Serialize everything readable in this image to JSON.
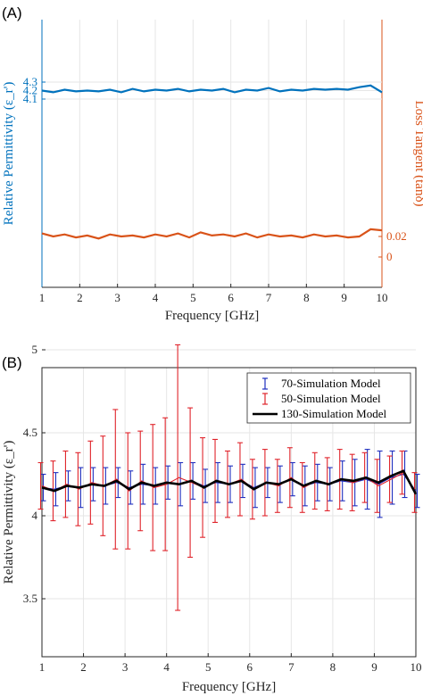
{
  "panels": [
    {
      "label": "(A)"
    },
    {
      "label": "(B)"
    }
  ],
  "chart_data": [
    {
      "type": "line",
      "panel": "(A)",
      "xlabel": "Frequency [GHz]",
      "ylabel_left": "Relative Permittivity (ε_r')",
      "ylabel_right": "Loss Tangent (tanδ)",
      "xlim": [
        1,
        10
      ],
      "xticks": [
        "1",
        "2",
        "3",
        "4",
        "5",
        "6",
        "7",
        "8",
        "9",
        "10"
      ],
      "left_ticks": [
        "4.3",
        "4.2",
        "4.1"
      ],
      "right_ticks": [
        "0.02",
        "0"
      ],
      "colors": {
        "permittivity": "#0072BD",
        "loss_tangent": "#D95319"
      },
      "grid": true,
      "x": [
        1.0,
        1.3,
        1.6,
        1.9,
        2.2,
        2.5,
        2.8,
        3.1,
        3.4,
        3.7,
        4.0,
        4.3,
        4.6,
        4.9,
        5.2,
        5.5,
        5.8,
        6.1,
        6.4,
        6.7,
        7.0,
        7.3,
        7.6,
        7.9,
        8.2,
        8.5,
        8.8,
        9.1,
        9.4,
        9.7,
        10.0
      ],
      "series": [
        {
          "values": [
            4.2,
            4.18,
            4.21,
            4.19,
            4.2,
            4.19,
            4.21,
            4.18,
            4.22,
            4.19,
            4.21,
            4.2,
            4.22,
            4.19,
            4.21,
            4.2,
            4.22,
            4.18,
            4.21,
            4.2,
            4.23,
            4.19,
            4.21,
            4.2,
            4.22,
            4.21,
            4.22,
            4.21,
            4.24,
            4.26,
            4.18
          ]
        },
        {
          "values": [
            0.023,
            0.02,
            0.022,
            0.019,
            0.021,
            0.018,
            0.022,
            0.02,
            0.021,
            0.019,
            0.022,
            0.02,
            0.023,
            0.019,
            0.024,
            0.021,
            0.022,
            0.02,
            0.023,
            0.019,
            0.022,
            0.02,
            0.021,
            0.019,
            0.022,
            0.02,
            0.021,
            0.019,
            0.02,
            0.027,
            0.026
          ]
        }
      ]
    },
    {
      "type": "line",
      "panel": "(B)",
      "xlabel": "Frequency [GHz]",
      "ylabel": "Relative Permittivity (ε_r')",
      "xlim": [
        1,
        10
      ],
      "ylim": [
        3.2,
        5.3
      ],
      "xticks": [
        "1",
        "2",
        "3",
        "4",
        "5",
        "6",
        "7",
        "8",
        "9",
        "10"
      ],
      "yticks": [
        "3.5",
        "4",
        "4.5",
        "5"
      ],
      "grid": true,
      "legend_position": "top-right",
      "legend": [
        "70-Simulation Model",
        "50-Simulation Model",
        "130-Simulation Model"
      ],
      "colors": {
        "model70": "#1f2fbf",
        "model50": "#e0242b",
        "model130": "#000000"
      },
      "x": [
        1.0,
        1.3,
        1.6,
        1.9,
        2.2,
        2.5,
        2.8,
        3.1,
        3.4,
        3.7,
        4.0,
        4.3,
        4.6,
        4.9,
        5.2,
        5.5,
        5.8,
        6.1,
        6.4,
        6.7,
        7.0,
        7.3,
        7.6,
        7.9,
        8.2,
        8.5,
        8.8,
        9.1,
        9.4,
        9.7,
        10.0
      ],
      "series": [
        {
          "name": "70-Simulation Model",
          "values": [
            4.17,
            4.16,
            4.18,
            4.17,
            4.19,
            4.18,
            4.2,
            4.17,
            4.19,
            4.18,
            4.2,
            4.19,
            4.21,
            4.18,
            4.2,
            4.19,
            4.21,
            4.17,
            4.2,
            4.19,
            4.22,
            4.18,
            4.2,
            4.19,
            4.21,
            4.2,
            4.22,
            4.19,
            4.23,
            4.25,
            4.15
          ],
          "errors": [
            0.08,
            0.1,
            0.09,
            0.12,
            0.1,
            0.11,
            0.09,
            0.1,
            0.12,
            0.11,
            0.1,
            0.13,
            0.11,
            0.1,
            0.12,
            0.11,
            0.1,
            0.12,
            0.09,
            0.11,
            0.1,
            0.12,
            0.11,
            0.1,
            0.12,
            0.14,
            0.18,
            0.2,
            0.16,
            0.14,
            0.1
          ]
        },
        {
          "name": "50-Simulation Model",
          "values": [
            4.18,
            4.15,
            4.19,
            4.16,
            4.2,
            4.18,
            4.22,
            4.15,
            4.21,
            4.17,
            4.19,
            4.23,
            4.2,
            4.17,
            4.21,
            4.19,
            4.22,
            4.16,
            4.2,
            4.18,
            4.23,
            4.17,
            4.21,
            4.19,
            4.22,
            4.2,
            4.23,
            4.18,
            4.22,
            4.26,
            4.14
          ],
          "errors": [
            0.14,
            0.18,
            0.2,
            0.22,
            0.25,
            0.3,
            0.42,
            0.35,
            0.3,
            0.38,
            0.4,
            0.8,
            0.45,
            0.3,
            0.25,
            0.2,
            0.22,
            0.18,
            0.2,
            0.16,
            0.18,
            0.15,
            0.17,
            0.16,
            0.18,
            0.17,
            0.15,
            0.16,
            0.14,
            0.13,
            0.12
          ]
        },
        {
          "name": "130-Simulation Model",
          "values": [
            4.17,
            4.15,
            4.18,
            4.17,
            4.19,
            4.18,
            4.21,
            4.16,
            4.2,
            4.18,
            4.2,
            4.19,
            4.21,
            4.17,
            4.21,
            4.19,
            4.21,
            4.16,
            4.2,
            4.19,
            4.22,
            4.18,
            4.21,
            4.19,
            4.22,
            4.21,
            4.23,
            4.2,
            4.24,
            4.27,
            4.13
          ]
        }
      ]
    }
  ]
}
